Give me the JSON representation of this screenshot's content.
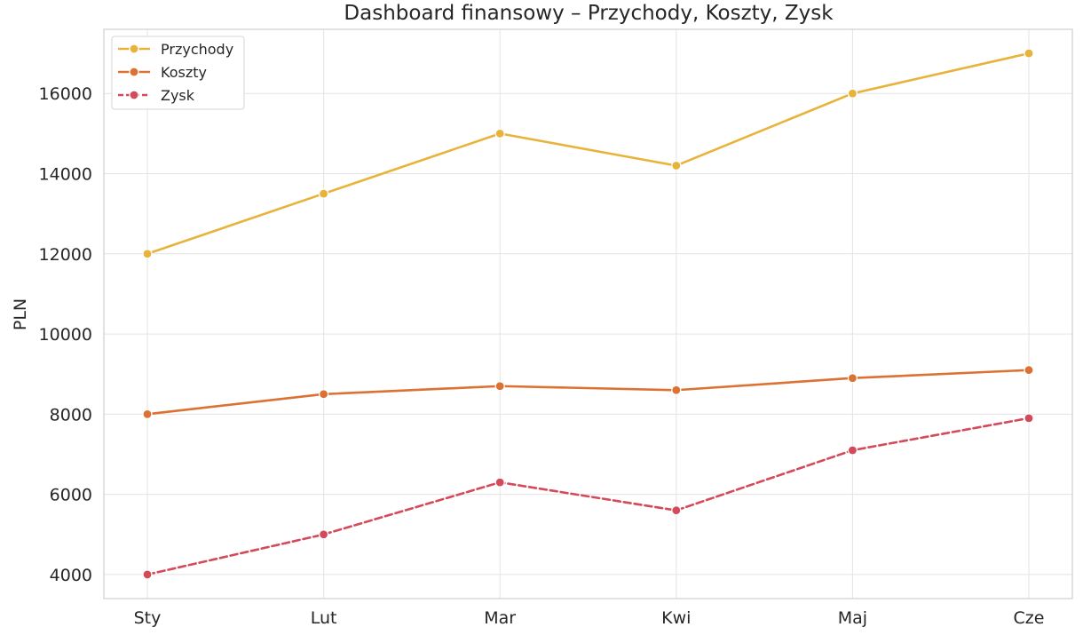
{
  "chart_data": {
    "type": "line",
    "title": "Dashboard finansowy – Przychody, Koszty, Zysk",
    "xlabel": "",
    "ylabel": "PLN",
    "categories": [
      "Sty",
      "Lut",
      "Mar",
      "Kwi",
      "Maj",
      "Cze"
    ],
    "ylim": [
      3400,
      17600
    ],
    "yticks": [
      4000,
      6000,
      8000,
      10000,
      12000,
      14000,
      16000
    ],
    "grid": true,
    "legend_position": "top-left",
    "series": [
      {
        "name": "Przychody",
        "values": [
          12000,
          13500,
          15000,
          14200,
          16000,
          17000
        ],
        "color": "#e8b33a",
        "dash": "solid"
      },
      {
        "name": "Koszty",
        "values": [
          8000,
          8500,
          8700,
          8600,
          8900,
          9100
        ],
        "color": "#db7233",
        "dash": "solid"
      },
      {
        "name": "Zysk",
        "values": [
          4000,
          5000,
          6300,
          5600,
          7100,
          7900
        ],
        "color": "#d34a5a",
        "dash": "dashed"
      }
    ]
  }
}
